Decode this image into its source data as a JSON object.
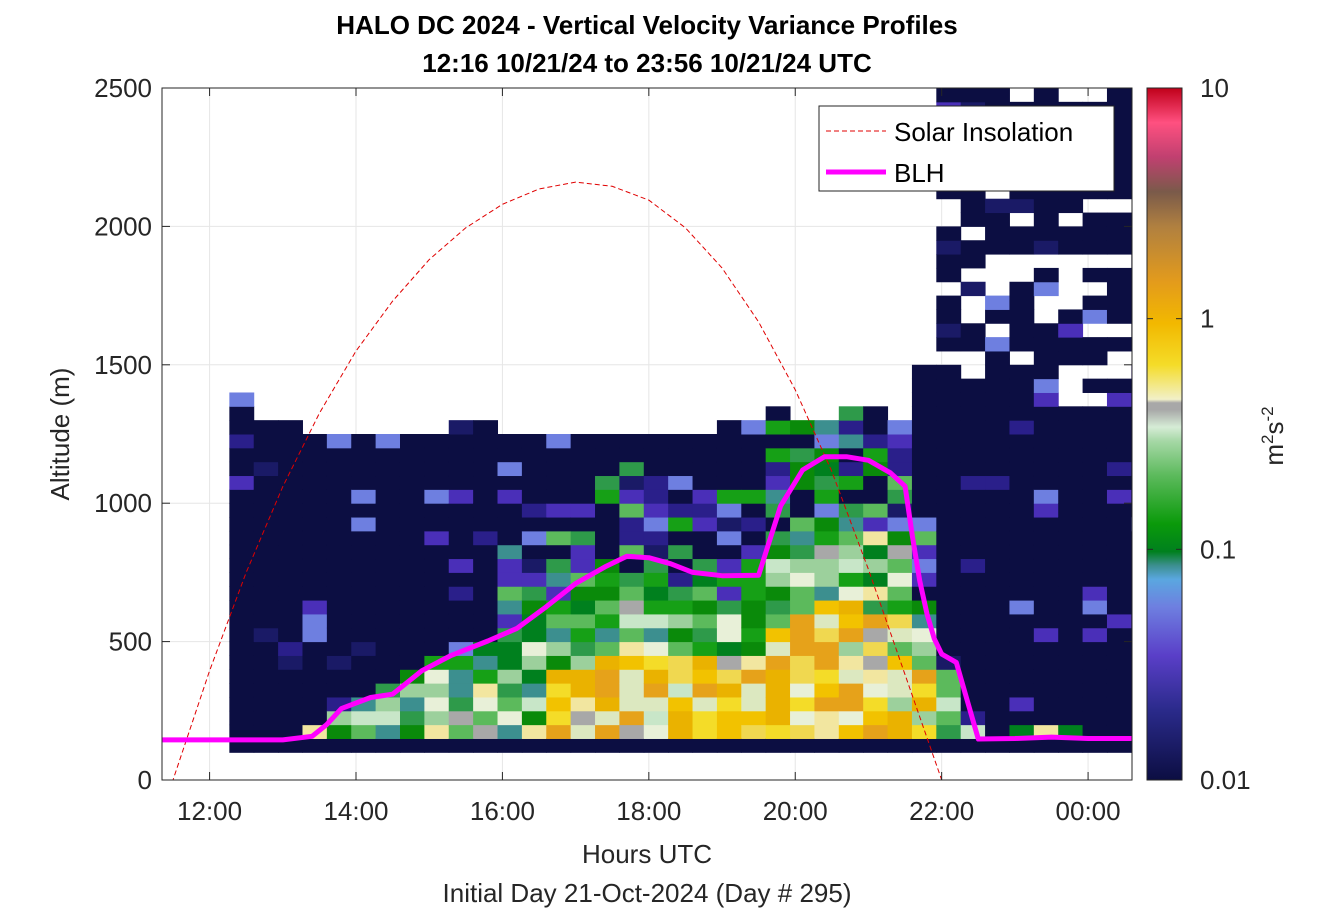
{
  "title_line1": "HALO DC 2024 - Vertical Velocity Variance Profiles",
  "title_line2": "12:16 10/21/24 to 23:56 10/21/24  UTC",
  "xlabel": "Hours UTC",
  "ylabel": "Altitude (m)",
  "footer": "Initial Day 21-Oct-2024 (Day # 295)",
  "colorbar_label_base": "m",
  "colorbar_label_exp1": "2",
  "colorbar_label_mid": "s",
  "colorbar_label_exp2": "-2",
  "legend": {
    "solar": "Solar Insolation",
    "blh": "BLH"
  },
  "colors": {
    "blh": "#ff00ff",
    "solar": "#e00000",
    "background_cell": "#0c0e42"
  },
  "chart_data": {
    "type": "heatmap",
    "x_ticks": [
      {
        "hour": 12,
        "label": "12:00"
      },
      {
        "hour": 14,
        "label": "14:00"
      },
      {
        "hour": 16,
        "label": "16:00"
      },
      {
        "hour": 18,
        "label": "18:00"
      },
      {
        "hour": 20,
        "label": "20:00"
      },
      {
        "hour": 22,
        "label": "22:00"
      },
      {
        "hour": 24,
        "label": "00:00"
      }
    ],
    "xlim": [
      11.35,
      24.6
    ],
    "ylim": [
      0,
      2500
    ],
    "y_ticks": [
      0,
      500,
      1000,
      1500,
      2000,
      2500
    ],
    "grid": true,
    "legend_position": "top-right",
    "colorbar": {
      "scale": "log",
      "range": [
        0.01,
        10
      ],
      "ticks": [
        {
          "value": 0.01,
          "label": "0.01"
        },
        {
          "value": 0.1,
          "label": "0.1"
        },
        {
          "value": 1,
          "label": "1"
        },
        {
          "value": 10,
          "label": "10"
        }
      ]
    },
    "heatmap": {
      "x_start": 12.27,
      "x_step": 0.333,
      "y_start": 100,
      "y_step": 50,
      "top_by_column": [
        1400,
        1300,
        1300,
        1250,
        1250,
        1250,
        1250,
        1250,
        1250,
        1300,
        1300,
        1250,
        1250,
        1250,
        1250,
        1250,
        1250,
        1250,
        1250,
        1250,
        1300,
        1300,
        1350,
        1300,
        1300,
        1350,
        1350,
        1300,
        1500,
        2500,
        2500,
        2500,
        2500,
        2500,
        2500,
        2500,
        2500,
        2500,
        2500,
        2500,
        2500,
        2500,
        2500,
        2500,
        2500,
        2500,
        2500,
        2500,
        2500,
        2500,
        2500,
        2500,
        2500,
        2500
      ]
    },
    "series": [
      {
        "name": "BLH",
        "x": [
          11.35,
          12.0,
          13.0,
          13.4,
          13.6,
          13.8,
          14.2,
          14.5,
          14.9,
          15.3,
          15.8,
          16.2,
          16.6,
          17.0,
          17.4,
          17.7,
          18.0,
          18.3,
          18.6,
          19.0,
          19.5,
          19.8,
          20.1,
          20.4,
          20.7,
          21.0,
          21.3,
          21.5,
          21.6,
          21.7,
          21.8,
          21.9,
          22.0,
          22.2,
          22.5,
          23.0,
          23.5,
          24.0,
          24.6
        ],
        "y": [
          145,
          145,
          145,
          158,
          200,
          258,
          298,
          310,
          395,
          450,
          502,
          548,
          626,
          710,
          770,
          808,
          803,
          781,
          750,
          738,
          740,
          990,
          1120,
          1168,
          1168,
          1155,
          1110,
          1061,
          880,
          720,
          600,
          510,
          455,
          425,
          148,
          150,
          155,
          150,
          150
        ]
      },
      {
        "name": "Solar Insolation",
        "x": [
          11.35,
          11.5,
          12.0,
          12.5,
          13.0,
          13.5,
          14.0,
          14.5,
          15.0,
          15.5,
          16.0,
          16.5,
          17.0,
          17.5,
          18.0,
          18.5,
          19.0,
          19.5,
          20.0,
          20.5,
          21.0,
          21.5,
          22.0,
          22.3,
          22.6,
          23.5,
          24.6
        ],
        "y": [
          0,
          0,
          395,
          750,
          1060,
          1325,
          1550,
          1730,
          1880,
          1995,
          2080,
          2135,
          2160,
          2145,
          2095,
          1995,
          1850,
          1655,
          1410,
          1115,
          760,
          380,
          0,
          0,
          0,
          0,
          0
        ]
      }
    ]
  }
}
